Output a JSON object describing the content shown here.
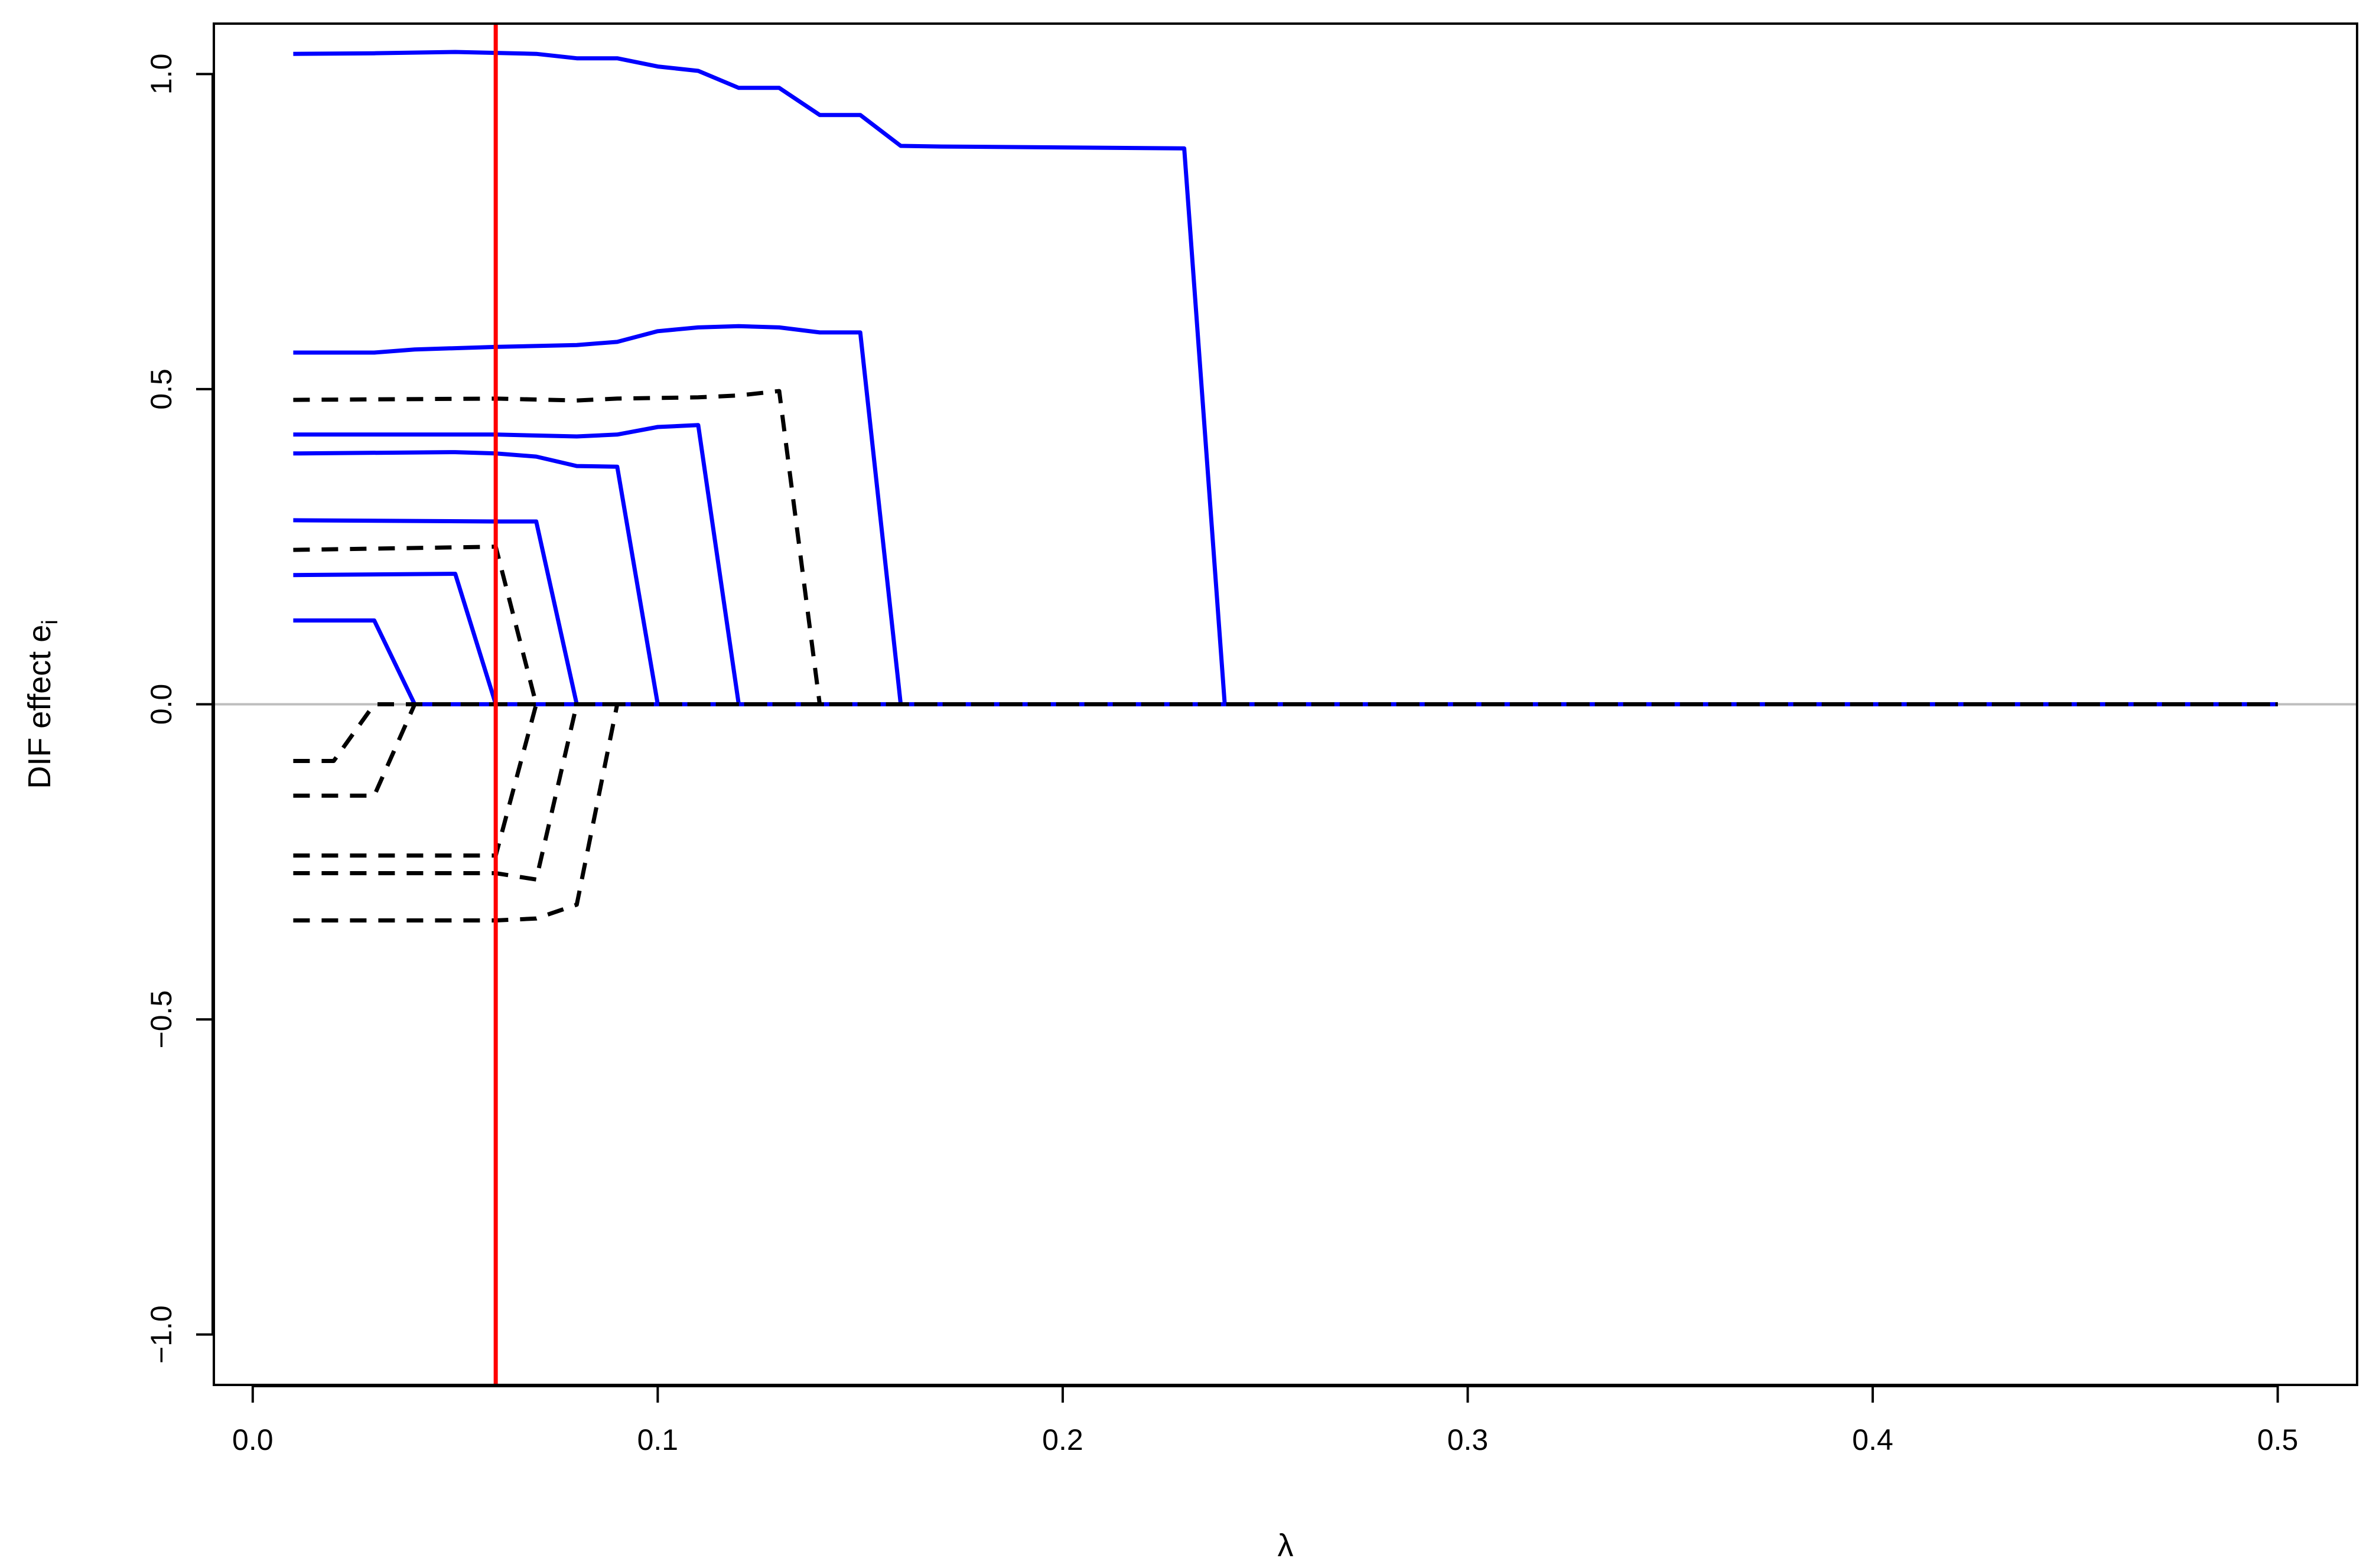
{
  "chart_data": {
    "type": "line",
    "title": "",
    "xlabel": "λ",
    "ylabel": "DIF effect e",
    "ylabel_subscript": "i",
    "xlim": [
      0.0,
      0.5
    ],
    "ylim": [
      -1.0,
      1.0
    ],
    "x_ticks": [
      "0.0",
      "0.1",
      "0.2",
      "0.3",
      "0.4",
      "0.5"
    ],
    "y_ticks": [
      "−1.0",
      "−0.5",
      "0.0",
      "0.5",
      "1.0"
    ],
    "grid": false,
    "legend": "none",
    "reference_lines": [
      {
        "orientation": "horizontal",
        "value": 0.0,
        "color": "#bebebe"
      },
      {
        "orientation": "vertical",
        "value": 0.06,
        "color": "#ff0000"
      }
    ],
    "colors": {
      "positive_path": "#0000ff",
      "negative_path": "#000000",
      "selected_lambda": "#ff0000",
      "zero_line": "#bebebe"
    },
    "series": [
      {
        "style": "solid",
        "color": "#0000ff",
        "x": [
          0.01,
          0.03,
          0.05,
          0.07,
          0.08,
          0.09,
          0.1,
          0.11,
          0.12,
          0.13,
          0.14,
          0.15,
          0.16,
          0.17,
          0.23,
          0.24,
          0.5
        ],
        "y": [
          1.032,
          1.033,
          1.035,
          1.032,
          1.025,
          1.025,
          1.012,
          1.005,
          0.978,
          0.978,
          0.935,
          0.935,
          0.886,
          0.885,
          0.882,
          0.0,
          0.0
        ]
      },
      {
        "style": "solid",
        "color": "#0000ff",
        "x": [
          0.01,
          0.03,
          0.04,
          0.06,
          0.08,
          0.09,
          0.1,
          0.11,
          0.12,
          0.13,
          0.14,
          0.15,
          0.16,
          0.5
        ],
        "y": [
          0.558,
          0.558,
          0.563,
          0.567,
          0.57,
          0.575,
          0.592,
          0.598,
          0.6,
          0.598,
          0.59,
          0.59,
          0.0,
          0.0
        ]
      },
      {
        "style": "dashed",
        "color": "#000000",
        "x": [
          0.01,
          0.06,
          0.08,
          0.09,
          0.11,
          0.12,
          0.13,
          0.14,
          0.5
        ],
        "y": [
          0.483,
          0.485,
          0.482,
          0.485,
          0.487,
          0.49,
          0.497,
          0.0,
          0.0
        ]
      },
      {
        "style": "solid",
        "color": "#0000ff",
        "x": [
          0.01,
          0.06,
          0.08,
          0.09,
          0.1,
          0.11,
          0.12,
          0.5
        ],
        "y": [
          0.428,
          0.428,
          0.425,
          0.428,
          0.44,
          0.443,
          0.0,
          0.0
        ]
      },
      {
        "style": "solid",
        "color": "#0000ff",
        "x": [
          0.01,
          0.05,
          0.06,
          0.07,
          0.08,
          0.09,
          0.1,
          0.5
        ],
        "y": [
          0.398,
          0.4,
          0.398,
          0.393,
          0.378,
          0.377,
          0.0,
          0.0
        ]
      },
      {
        "style": "solid",
        "color": "#0000ff",
        "x": [
          0.01,
          0.06,
          0.07,
          0.08,
          0.5
        ],
        "y": [
          0.292,
          0.29,
          0.29,
          0.0,
          0.0
        ]
      },
      {
        "style": "dashed",
        "color": "#000000",
        "x": [
          0.01,
          0.06,
          0.07,
          0.5
        ],
        "y": [
          0.245,
          0.25,
          0.0,
          0.0
        ]
      },
      {
        "style": "solid",
        "color": "#0000ff",
        "x": [
          0.01,
          0.05,
          0.06,
          0.5
        ],
        "y": [
          0.205,
          0.207,
          0.0,
          0.0
        ]
      },
      {
        "style": "solid",
        "color": "#0000ff",
        "x": [
          0.01,
          0.03,
          0.04,
          0.5
        ],
        "y": [
          0.133,
          0.133,
          0.0,
          0.0
        ]
      },
      {
        "style": "dashed",
        "color": "#000000",
        "x": [
          0.01,
          0.02,
          0.03,
          0.5
        ],
        "y": [
          -0.09,
          -0.09,
          0.0,
          0.0
        ]
      },
      {
        "style": "dashed",
        "color": "#000000",
        "x": [
          0.01,
          0.03,
          0.04,
          0.5
        ],
        "y": [
          -0.145,
          -0.145,
          0.0,
          0.0
        ]
      },
      {
        "style": "dashed",
        "color": "#000000",
        "x": [
          0.01,
          0.06,
          0.07,
          0.5
        ],
        "y": [
          -0.24,
          -0.24,
          0.0,
          0.0
        ]
      },
      {
        "style": "dashed",
        "color": "#000000",
        "x": [
          0.01,
          0.06,
          0.07,
          0.08,
          0.5
        ],
        "y": [
          -0.268,
          -0.268,
          -0.278,
          0.0,
          0.0
        ]
      },
      {
        "style": "dashed",
        "color": "#000000",
        "x": [
          0.01,
          0.06,
          0.07,
          0.08,
          0.09,
          0.5
        ],
        "y": [
          -0.343,
          -0.343,
          -0.34,
          -0.318,
          0.0,
          0.0
        ]
      }
    ]
  }
}
